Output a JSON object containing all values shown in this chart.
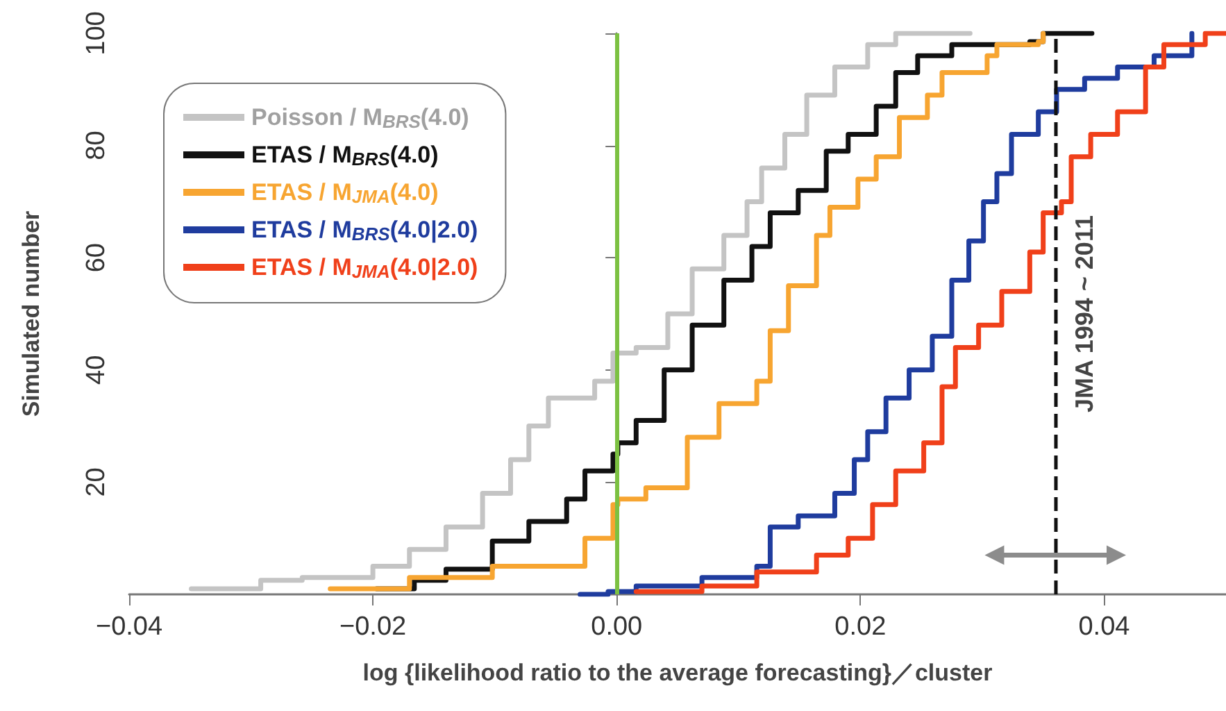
{
  "chart_data": {
    "type": "step",
    "xlabel": "log {likelihood ratio to the average forecasting}／cluster",
    "ylabel": "Simulated number",
    "xlim": [
      -0.04,
      0.05
    ],
    "xticks": [
      {
        "value": -0.04,
        "label": "−0.04"
      },
      {
        "value": -0.02,
        "label": "−0.02"
      },
      {
        "value": 0,
        "label": "0.00"
      },
      {
        "value": 0.02,
        "label": "0.02"
      },
      {
        "value": 0.04,
        "label": "0.04"
      }
    ],
    "ylim": [
      0,
      100
    ],
    "yticks": [
      20,
      40,
      60,
      80,
      100
    ],
    "grid": false,
    "legend": "top left",
    "marker": "none",
    "line_style": "solid",
    "series": [
      {
        "name": "Poisson / M$_{BRS}$(4.0)",
        "color": "#c4c4c4",
        "x": [
          -0.0349,
          -0.0292,
          -0.0258,
          -0.02,
          -0.017,
          -0.014,
          -0.011,
          -0.0087,
          -0.0072,
          -0.0056,
          -0.0041,
          -0.0018,
          -0.0003,
          0.0016,
          0.0042,
          0.0062,
          0.0088,
          0.0107,
          0.0119,
          0.0138,
          0.0156,
          0.0179,
          0.0206,
          0.0229,
          0.029
        ],
        "values": [
          1,
          2.5,
          3,
          5,
          8,
          12,
          18,
          24,
          30,
          35,
          35,
          38,
          43,
          44,
          50,
          58,
          64,
          70,
          76,
          82,
          89,
          94,
          98,
          100,
          100
        ]
      },
      {
        "name": "ETAS / M$_{BRS}$(4.0)",
        "color": "#111111",
        "x": [
          -0.0197,
          -0.0166,
          -0.014,
          -0.0102,
          -0.0072,
          -0.0041,
          -0.0026,
          -0.0003,
          0.0001,
          0.0016,
          0.0039,
          0.0062,
          0.0088,
          0.0111,
          0.0126,
          0.0149,
          0.0172,
          0.019,
          0.0213,
          0.0229,
          0.0247,
          0.0275,
          0.0339,
          0.035,
          0.039
        ],
        "values": [
          1,
          2.5,
          4.5,
          9.5,
          13,
          17,
          22,
          25,
          27,
          31,
          40,
          48,
          56,
          62,
          68,
          72,
          79,
          82,
          87,
          93,
          96,
          98,
          98.5,
          100,
          100
        ]
      },
      {
        "name": "ETAS / M$_{JMA}$(4.0)",
        "color": "#f7a531",
        "x": [
          -0.0235,
          -0.017,
          -0.0102,
          -0.0041,
          -0.0026,
          -0.0003,
          0.0001,
          0.0024,
          0.0058,
          0.0084,
          0.0115,
          0.0126,
          0.0141,
          0.0164,
          0.0175,
          0.0198,
          0.0213,
          0.0232,
          0.0255,
          0.0267,
          0.0304,
          0.0312,
          0.0346,
          0.035
        ],
        "values": [
          1,
          3,
          5,
          5,
          10,
          16,
          17,
          19,
          28,
          34,
          38,
          47,
          55,
          64,
          69,
          74,
          78,
          85,
          89,
          93,
          96,
          98,
          98.5,
          100
        ]
      },
      {
        "name": "ETAS / M$_{BRS}$(4.0|2.0)",
        "color": "#1f3c9e",
        "x": [
          -0.003,
          -0.0007,
          0.0016,
          0.007,
          0.0115,
          0.0126,
          0.0149,
          0.0179,
          0.0195,
          0.0206,
          0.0221,
          0.024,
          0.0259,
          0.0275,
          0.0289,
          0.0301,
          0.0312,
          0.0324,
          0.0346,
          0.0361,
          0.0384,
          0.0411,
          0.0441,
          0.0472
        ],
        "values": [
          0,
          0.5,
          1.5,
          3,
          5,
          12,
          14,
          18,
          24,
          29,
          35,
          40,
          46,
          56,
          63,
          70,
          75,
          82,
          86,
          90,
          92,
          94,
          96,
          100
        ]
      },
      {
        "name": "ETAS / M$_{JMA}$(4.0|2.0)",
        "color": "#f0401a",
        "x": [
          0.0016,
          0.007,
          0.0115,
          0.0164,
          0.019,
          0.021,
          0.0229,
          0.0252,
          0.0267,
          0.0278,
          0.0297,
          0.0316,
          0.0339,
          0.035,
          0.0365,
          0.0373,
          0.0389,
          0.0411,
          0.0434,
          0.0449,
          0.0483,
          0.05
        ],
        "values": [
          0.5,
          1.5,
          4,
          7,
          10,
          16,
          22,
          27,
          37,
          44,
          48,
          54,
          61,
          68,
          70,
          78,
          82,
          86,
          94,
          98,
          100,
          100
        ]
      },
      {
        "type": "line",
        "color": "#8c8c8c",
        "marker": "triangle",
        "x": [
          0.031,
          0.041
        ],
        "values": [
          7,
          7
        ]
      }
    ],
    "ref_lines": [
      {
        "axis": "x",
        "value": 0,
        "label": null,
        "color": "#7cc142",
        "line_style": "solid"
      },
      {
        "axis": "x",
        "value": 0.036,
        "label": "JMA 1994 ~ 2011",
        "color": "#111111",
        "line_style": "dashed"
      }
    ]
  }
}
